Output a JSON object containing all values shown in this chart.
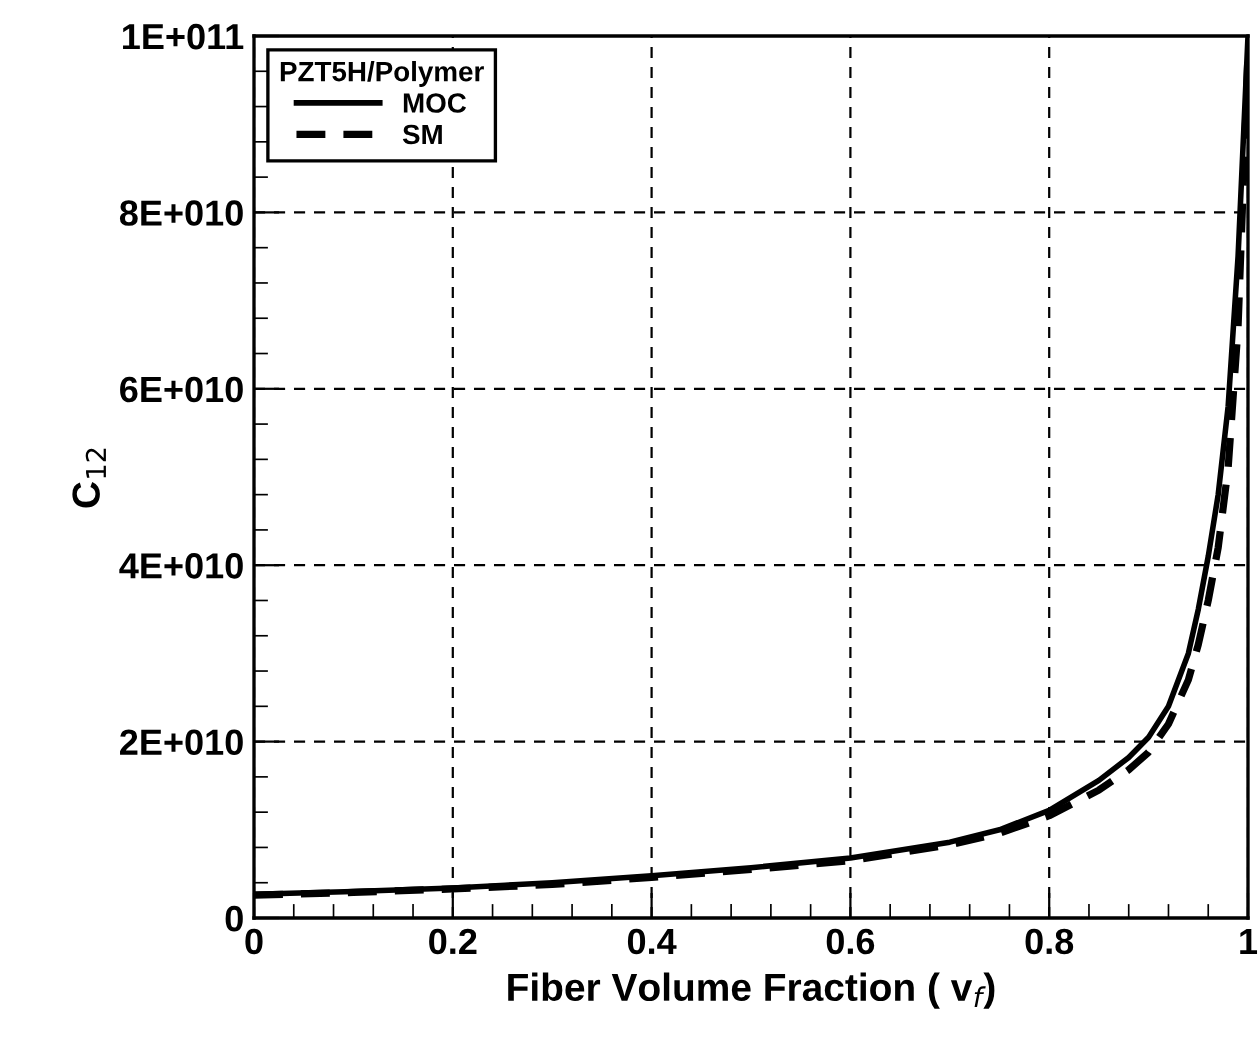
{
  "chart_data": {
    "type": "line",
    "xlabel": "Fiber Volume Fraction ( v$_{f}$)",
    "ylabel": "C$_{12}$",
    "legend_title": "PZT5H/Polymer",
    "legend": "top left",
    "grid": true,
    "x": [
      0,
      0.1,
      0.2,
      0.3,
      0.4,
      0.5,
      0.6,
      0.7,
      0.75,
      0.8,
      0.85,
      0.88,
      0.9,
      0.92,
      0.94,
      0.95,
      0.96,
      0.97,
      0.98,
      0.99,
      1.0
    ],
    "series": [
      {
        "name": "MOC",
        "color": "#000000",
        "line_style": "solid",
        "values": [
          2700000000.0,
          3000000000.0,
          3400000000.0,
          4000000000.0,
          4800000000.0,
          5700000000.0,
          6800000000.0,
          8600000000.0,
          10000000000.0,
          12200000000.0,
          15600000000.0,
          18200000000.0,
          20500000000.0,
          24000000000.0,
          30000000000.0,
          35000000000.0,
          41000000000.0,
          48000000000.0,
          58000000000.0,
          75000000000.0,
          100000000000.0
        ]
      },
      {
        "name": "SM",
        "color": "#000000",
        "line_style": "dashed",
        "values": [
          2600000000.0,
          2900000000.0,
          3300000000.0,
          3800000000.0,
          4600000000.0,
          5500000000.0,
          6500000000.0,
          8300000000.0,
          9600000000.0,
          11600000000.0,
          14500000000.0,
          16800000000.0,
          18800000000.0,
          22000000000.0,
          27000000000.0,
          31000000000.0,
          36000000000.0,
          42000000000.0,
          51000000000.0,
          67000000000.0,
          98000000000.0
        ]
      }
    ],
    "xlim": [
      0,
      1
    ],
    "xticks": [
      0,
      0.2,
      0.4,
      0.6,
      0.8,
      1
    ],
    "ylim": [
      0,
      100000000000.0
    ],
    "yticks": [
      {
        "value": 0,
        "label": "0"
      },
      {
        "value": 20000000000.0,
        "label": "2E+010"
      },
      {
        "value": 40000000000.0,
        "label": "4E+010"
      },
      {
        "value": 60000000000.0,
        "label": "6E+010"
      },
      {
        "value": 80000000000.0,
        "label": "8E+010"
      },
      {
        "value": 100000000000.0,
        "label": "1E+011"
      }
    ]
  }
}
